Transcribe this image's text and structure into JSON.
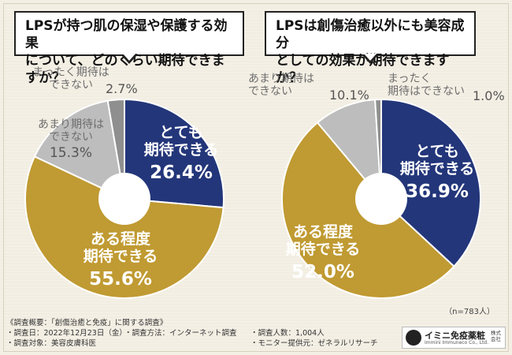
{
  "questions": {
    "q1_line1": "LPSが持つ肌の保湿や保護する効果",
    "q1_line2": "について、どのくらい期待できますか？",
    "q2_line1": "LPSは創傷治癒以外にも美容成分",
    "q2_line2": "としての効果が期待できますか？"
  },
  "chart_data": [
    {
      "type": "pie",
      "title": "LPSが持つ肌の保湿や保護する効果について、どのくらい期待できますか？",
      "slices": [
        {
          "label": "とても期待できる",
          "value": 26.4,
          "color": "#23367a"
        },
        {
          "label": "ある程度期待できる",
          "value": 55.6,
          "color": "#c09a32"
        },
        {
          "label": "あまり期待はできない",
          "value": 15.3,
          "color": "#bdbdbd"
        },
        {
          "label": "まったく期待はできない",
          "value": 2.7,
          "color": "#8f8f8f"
        }
      ],
      "display_labels": {
        "s0_l1": "とても",
        "s0_l2": "期待できる",
        "s0_v": "26.4%",
        "s1_l1": "ある程度",
        "s1_l2": "期待できる",
        "s1_v": "55.6%",
        "s2_l1": "あまり期待は",
        "s2_l2": "できない",
        "s2_v": "15.3%",
        "s3_l1": "まったく期待は",
        "s3_l2": "できない",
        "s3_v": "2.7%"
      }
    },
    {
      "type": "pie",
      "title": "LPSは創傷治癒以外にも美容成分としての効果が期待できますか？",
      "slices": [
        {
          "label": "とても期待できる",
          "value": 36.9,
          "color": "#23367a"
        },
        {
          "label": "ある程度期待できる",
          "value": 52.0,
          "color": "#c09a32"
        },
        {
          "label": "あまり期待はできない",
          "value": 10.1,
          "color": "#bdbdbd"
        },
        {
          "label": "まったく期待はできない",
          "value": 1.0,
          "color": "#8f8f8f"
        }
      ],
      "display_labels": {
        "s0_l1": "とても",
        "s0_l2": "期待できる",
        "s0_v": "36.9%",
        "s1_l1": "ある程度",
        "s1_l2": "期待できる",
        "s1_v": "52.0%",
        "s2_l1": "あまり期待は",
        "s2_l2": "できない",
        "s2_v": "10.1%",
        "s3_l1": "まったく",
        "s3_l2": "期待はできない",
        "s3_v": "1.0%"
      }
    }
  ],
  "sample_size": "（n=783人）",
  "survey": {
    "overview": "《調査概要：「創傷治癒と免疫」に関する調査》",
    "date": "・調査日：2022年12月23日（金）",
    "method": "・調査方法：インターネット調査",
    "count": "・調査人数：1,004人",
    "target": "・調査対象：美容皮膚科医",
    "provider": "・モニター提供元：ゼネラルリサーチ"
  },
  "logo": {
    "name": "イミニ免疫薬粧",
    "english": "Immini Immuneco Co., Ltd.",
    "sub": "株式会社"
  }
}
